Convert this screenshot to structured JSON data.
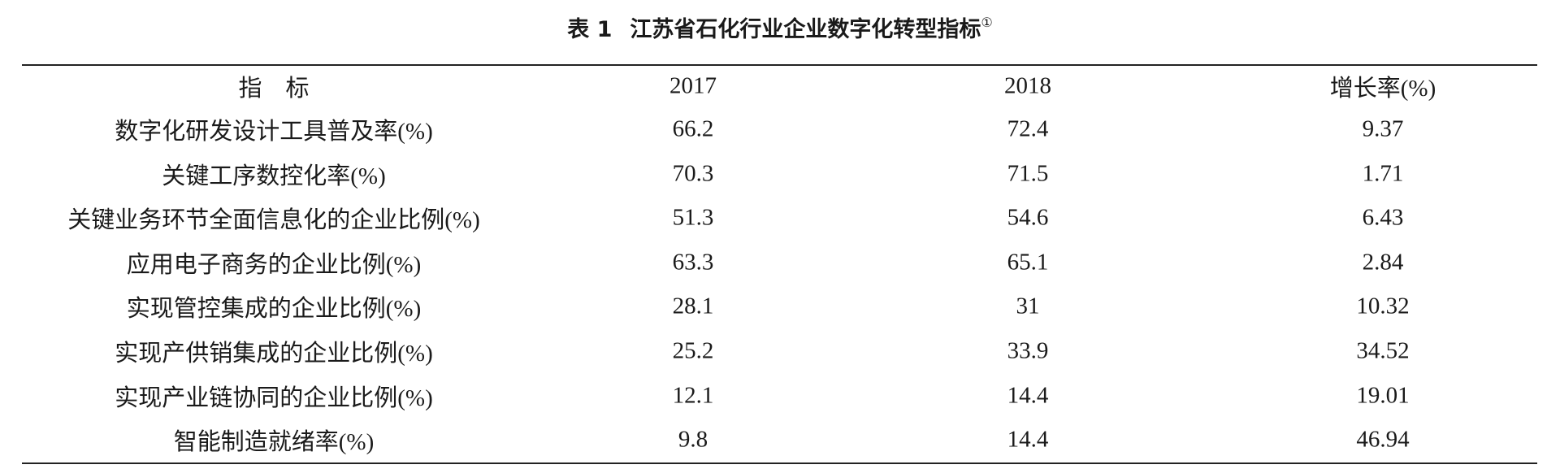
{
  "caption": {
    "label": "表 1",
    "title": "江苏省石化行业企业数字化转型指标",
    "footnote_mark": "①"
  },
  "table": {
    "header": [
      "指　标",
      "2017",
      "2018",
      "增长率(%)"
    ],
    "rows": [
      [
        "数字化研发设计工具普及率(%)",
        "66.2",
        "72.4",
        "9.37"
      ],
      [
        "关键工序数控化率(%)",
        "70.3",
        "71.5",
        "1.71"
      ],
      [
        "关键业务环节全面信息化的企业比例(%)",
        "51.3",
        "54.6",
        "6.43"
      ],
      [
        "应用电子商务的企业比例(%)",
        "63.3",
        "65.1",
        "2.84"
      ],
      [
        "实现管控集成的企业比例(%)",
        "28.1",
        "31",
        "10.32"
      ],
      [
        "实现产供销集成的企业比例(%)",
        "25.2",
        "33.9",
        "34.52"
      ],
      [
        "实现产业链协同的企业比例(%)",
        "12.1",
        "14.4",
        "19.01"
      ],
      [
        "智能制造就绪率(%)",
        "9.8",
        "14.4",
        "46.94"
      ]
    ]
  }
}
